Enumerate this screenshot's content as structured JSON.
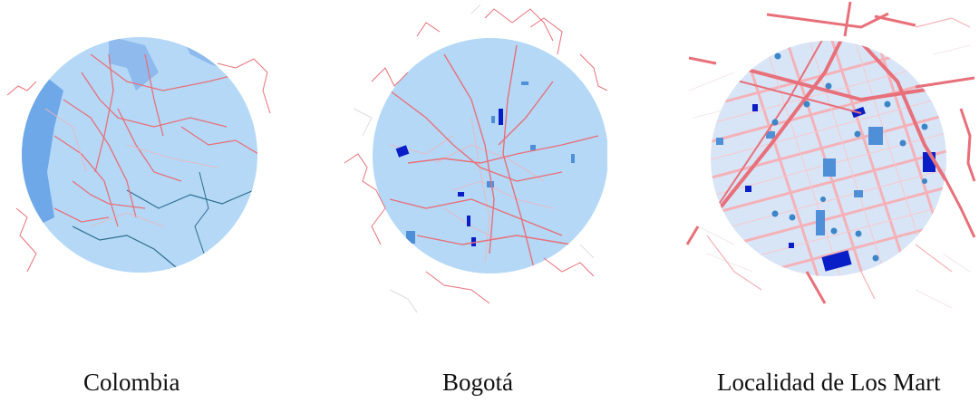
{
  "colors": {
    "circle_fill": "#b4d8f6",
    "sea": "#6fa8e8",
    "roads": "#e8707a",
    "roads_light": "#f4b2b8",
    "parcels": "#0a1ec8",
    "parcels_light": "#4f8fd8",
    "pins": "#3c86c8",
    "borders": "#2f6f8f"
  },
  "maps": [
    {
      "id": "colombia",
      "caption": "Colombia",
      "icon": "circular-map-thumbnail"
    },
    {
      "id": "bogota",
      "caption": "Bogotá",
      "icon": "circular-map-thumbnail"
    },
    {
      "id": "martires",
      "caption": "Localidad de Los Mart",
      "icon": "circular-map-thumbnail"
    }
  ]
}
